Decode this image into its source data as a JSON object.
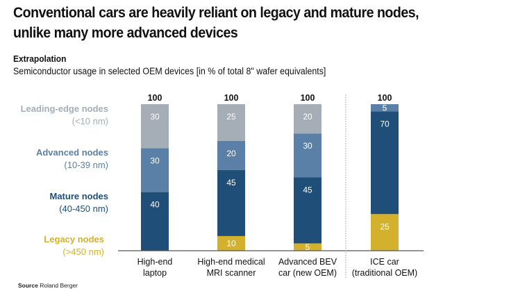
{
  "title_lines": [
    "Conventional cars are heavily reliant on legacy and mature nodes,",
    "unlike many more advanced devices"
  ],
  "subhead": "Extrapolation",
  "subtitle": "Semiconductor usage in selected OEM devices [in % of total 8\" wafer equivalents]",
  "legend": [
    {
      "name": "Leading-edge nodes",
      "range": "(<10 nm)",
      "color": "#a5adb6"
    },
    {
      "name": "Advanced nodes",
      "range": "(10-39 nm)",
      "color": "#5b80a8"
    },
    {
      "name": "Mature nodes",
      "range": "(40-450 nm)",
      "color": "#1f4e79"
    },
    {
      "name": "Legacy nodes",
      "range": "(>450 nm)",
      "color": "#d4b12c"
    }
  ],
  "source": {
    "label": "Source",
    "value": "Roland Berger"
  },
  "chart_data": {
    "type": "bar",
    "stacked": true,
    "title": "Semiconductor usage in selected OEM devices [in % of total 8\" wafer equivalents]",
    "categories": [
      [
        "High-end",
        "laptop"
      ],
      [
        "High-end medical",
        "MRI scanner"
      ],
      [
        "Advanced BEV",
        "car (new OEM)"
      ],
      [
        "ICE car",
        "(traditional OEM)"
      ]
    ],
    "totals": [
      100,
      100,
      100,
      100
    ],
    "series": [
      {
        "name": "Legacy nodes (>450 nm)",
        "color": "#d4b12c",
        "values": [
          0,
          10,
          5,
          25
        ]
      },
      {
        "name": "Mature nodes (40-450 nm)",
        "color": "#1f4e79",
        "values": [
          40,
          45,
          45,
          70
        ]
      },
      {
        "name": "Advanced nodes (10-39 nm)",
        "color": "#5b80a8",
        "values": [
          30,
          20,
          30,
          5
        ]
      },
      {
        "name": "Leading-edge nodes (<10 nm)",
        "color": "#a5adb6",
        "values": [
          30,
          25,
          20,
          0
        ]
      }
    ],
    "ylim": [
      0,
      100
    ],
    "xlabel": "",
    "ylabel": "",
    "grid": false,
    "legend_position": "left",
    "separator_after_category": 2
  }
}
